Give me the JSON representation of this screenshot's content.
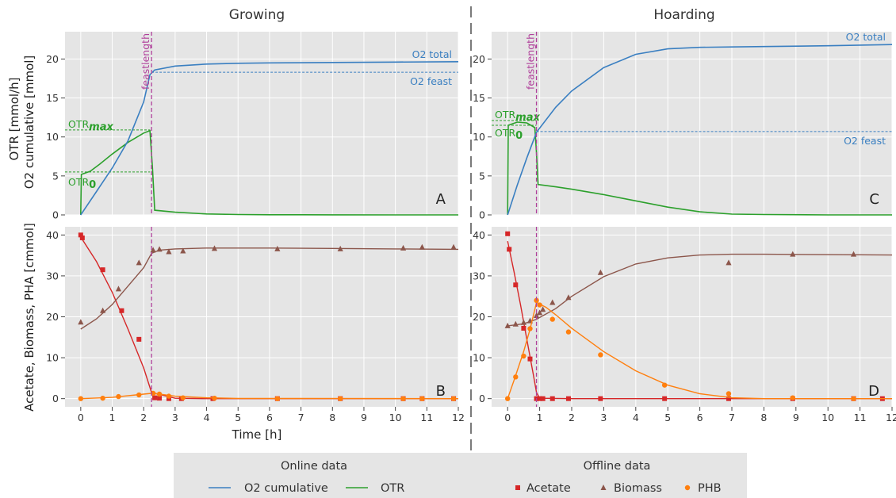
{
  "figure": {
    "ylabel_top_1": "OTR [mmol/h]",
    "ylabel_top_2": "O2 cumulative [mmol]",
    "ylabel_bottom": "Acetate, Biomass, PHA [cmmol]",
    "xlabel": "Time [h]"
  },
  "colors": {
    "o2": "#3a7fc1",
    "otr": "#2ca02c",
    "acetate": "#d62728",
    "biomass": "#8c564b",
    "phb": "#ff7f0e",
    "feast": "#b0409b"
  },
  "legend": {
    "online_title": "Online data",
    "offline_title": "Offline data",
    "o2_cumulative": "O2 cumulative",
    "otr": "OTR",
    "acetate": "Acetate",
    "biomass": "Biomass",
    "phb": "PHB"
  },
  "chart_data": [
    {
      "type": "line",
      "panel": "A",
      "column_title": "Growing",
      "xlim": [
        -0.5,
        12
      ],
      "ylim": [
        0,
        23.5
      ],
      "yticks": [
        0,
        5,
        10,
        15,
        20
      ],
      "xticks": [
        0,
        1,
        2,
        3,
        4,
        5,
        6,
        7,
        8,
        9,
        10,
        11,
        12
      ],
      "grid": true,
      "feastlength": 2.25,
      "feastlength_label": "feastlength",
      "series": [
        {
          "name": "O2 cumulative",
          "x": [
            0,
            0.5,
            1,
            1.5,
            2,
            2.2,
            2.35,
            3,
            4,
            5,
            6,
            8,
            10,
            12
          ],
          "y": [
            0,
            3,
            6,
            9.5,
            14.5,
            18,
            18.6,
            19.1,
            19.35,
            19.45,
            19.5,
            19.55,
            19.6,
            19.65
          ]
        },
        {
          "name": "OTR",
          "x": [
            0,
            0.02,
            0.3,
            0.6,
            1,
            1.5,
            2,
            2.2,
            2.28,
            2.35,
            3,
            4,
            5,
            6,
            8,
            10,
            12
          ],
          "y": [
            0,
            5.2,
            5.6,
            6.5,
            7.8,
            9.3,
            10.5,
            10.8,
            6,
            0.6,
            0.35,
            0.12,
            0.05,
            0.02,
            0.01,
            0,
            0
          ]
        }
      ],
      "hlines": [
        {
          "label": "OTRmax",
          "y": 10.9,
          "x_end": 2.2,
          "color": "otr"
        },
        {
          "label": "OTR0",
          "y": 5.5,
          "x_end": 2.2,
          "color": "otr"
        },
        {
          "label": "O2 feast",
          "y": 18.3,
          "x_start": 2.25,
          "color": "o2"
        }
      ],
      "annotations": {
        "total": "O2 total",
        "feast": "O2 feast",
        "max_main": "OTR",
        "max_sub": "max",
        "zero_main": "OTR",
        "zero_sub": "0"
      }
    },
    {
      "type": "line",
      "panel": "C",
      "column_title": "Hoarding",
      "xlim": [
        -0.5,
        12
      ],
      "ylim": [
        0,
        23.5
      ],
      "yticks": [
        0,
        5,
        10,
        15,
        20
      ],
      "xticks": [
        0,
        1,
        2,
        3,
        4,
        5,
        6,
        7,
        8,
        9,
        10,
        11,
        12
      ],
      "grid": true,
      "feastlength": 0.9,
      "feastlength_label": "feastlength",
      "series": [
        {
          "name": "O2 cumulative",
          "x": [
            0,
            0.3,
            0.6,
            0.9,
            1.5,
            2,
            3,
            4,
            5,
            6,
            7,
            8,
            10,
            12
          ],
          "y": [
            0,
            3.8,
            7.3,
            10.6,
            13.8,
            15.9,
            18.9,
            20.6,
            21.3,
            21.5,
            21.55,
            21.6,
            21.7,
            21.85
          ]
        },
        {
          "name": "OTR",
          "x": [
            0,
            0.02,
            0.3,
            0.6,
            0.85,
            0.9,
            0.95,
            1.5,
            2,
            3,
            4,
            5,
            6,
            7,
            8,
            10,
            12
          ],
          "y": [
            0,
            11.5,
            11.9,
            11.8,
            11.2,
            8,
            3.9,
            3.6,
            3.3,
            2.6,
            1.8,
            1,
            0.4,
            0.1,
            0.05,
            0,
            0
          ]
        }
      ],
      "hlines": [
        {
          "label": "OTRmax",
          "y": 12.1,
          "x_end": 0.9,
          "color": "otr"
        },
        {
          "label": "OTR0",
          "y": 11.5,
          "x_end": 0.9,
          "color": "otr"
        },
        {
          "label": "O2 feast",
          "y": 10.7,
          "x_start": 0.9,
          "color": "o2"
        }
      ],
      "annotations": {
        "total": "O2 total",
        "feast": "O2 feast",
        "max_main": "OTR",
        "max_sub": "max",
        "zero_main": "OTR",
        "zero_sub": "0"
      }
    },
    {
      "type": "scatter",
      "panel": "B",
      "xlim": [
        -0.5,
        12
      ],
      "ylim": [
        -2,
        42
      ],
      "yticks": [
        0,
        10,
        20,
        30,
        40
      ],
      "xticks": [
        0,
        1,
        2,
        3,
        4,
        5,
        6,
        7,
        8,
        9,
        10,
        11,
        12
      ],
      "grid": true,
      "feastlength": 2.25,
      "series": [
        {
          "name": "Acetate",
          "marker": "square",
          "points": [
            [
              0,
              40
            ],
            [
              0.05,
              39.3
            ],
            [
              0.7,
              31.5
            ],
            [
              1.3,
              21.5
            ],
            [
              1.85,
              14.5
            ],
            [
              2.35,
              0.2
            ],
            [
              2.5,
              0.1
            ],
            [
              2.8,
              0
            ],
            [
              3.2,
              0
            ],
            [
              4.2,
              0
            ],
            [
              6.25,
              0
            ],
            [
              8.25,
              0
            ],
            [
              10.25,
              0
            ],
            [
              10.85,
              0
            ],
            [
              11.85,
              0
            ]
          ],
          "fit": {
            "x": [
              0,
              0.5,
              1,
              1.5,
              2,
              2.25,
              3,
              4,
              6,
              8,
              10,
              12
            ],
            "y": [
              39.5,
              33.5,
              26,
              17,
              7.5,
              1.5,
              0.1,
              0,
              0,
              0,
              0,
              0
            ]
          }
        },
        {
          "name": "Biomass",
          "marker": "triangle",
          "points": [
            [
              0,
              18.7
            ],
            [
              0.7,
              21.5
            ],
            [
              1.2,
              26.8
            ],
            [
              1.85,
              33.2
            ],
            [
              2.3,
              36.3
            ],
            [
              2.5,
              36.5
            ],
            [
              2.8,
              35.9
            ],
            [
              3.25,
              36.1
            ],
            [
              4.25,
              36.7
            ],
            [
              6.25,
              36.6
            ],
            [
              8.25,
              36.6
            ],
            [
              10.25,
              36.8
            ],
            [
              10.85,
              37
            ],
            [
              11.85,
              37
            ]
          ],
          "fit": {
            "x": [
              0,
              0.5,
              1,
              1.5,
              2,
              2.25,
              2.5,
              3,
              4,
              6,
              8,
              10,
              12
            ],
            "y": [
              17,
              19.5,
              23,
              27.5,
              32,
              35.5,
              36.3,
              36.6,
              36.8,
              36.8,
              36.7,
              36.6,
              36.5
            ]
          }
        },
        {
          "name": "PHB",
          "marker": "circle",
          "points": [
            [
              0,
              0
            ],
            [
              0.7,
              0.1
            ],
            [
              1.2,
              0.5
            ],
            [
              1.85,
              0.9
            ],
            [
              2.3,
              1.3
            ],
            [
              2.5,
              1.1
            ],
            [
              2.8,
              0.6
            ],
            [
              3.25,
              0.2
            ],
            [
              4.25,
              0.1
            ],
            [
              6.25,
              0
            ],
            [
              8.25,
              0
            ],
            [
              10.25,
              0
            ],
            [
              10.85,
              0
            ],
            [
              11.85,
              0
            ]
          ],
          "fit": {
            "x": [
              0,
              1,
              2,
              2.25,
              2.5,
              3,
              4,
              5,
              12
            ],
            "y": [
              0,
              0.3,
              1.1,
              1.3,
              1.1,
              0.6,
              0.2,
              0.05,
              0
            ]
          }
        }
      ]
    },
    {
      "type": "scatter",
      "panel": "D",
      "xlim": [
        -0.5,
        12
      ],
      "ylim": [
        -2,
        42
      ],
      "yticks": [
        0,
        10,
        20,
        30,
        40
      ],
      "xticks": [
        0,
        1,
        2,
        3,
        4,
        5,
        6,
        7,
        8,
        9,
        10,
        11,
        12
      ],
      "grid": true,
      "feastlength": 0.9,
      "series": [
        {
          "name": "Acetate",
          "marker": "square",
          "points": [
            [
              0,
              40.3
            ],
            [
              0.05,
              36.5
            ],
            [
              0.25,
              27.8
            ],
            [
              0.5,
              17.2
            ],
            [
              0.7,
              9.7
            ],
            [
              0.9,
              0
            ],
            [
              1.0,
              0
            ],
            [
              1.1,
              0
            ],
            [
              1.4,
              0
            ],
            [
              1.9,
              0
            ],
            [
              2.9,
              0
            ],
            [
              4.9,
              0
            ],
            [
              6.9,
              0
            ],
            [
              8.9,
              0
            ],
            [
              10.8,
              0
            ],
            [
              11.7,
              0
            ]
          ],
          "fit": {
            "x": [
              0,
              0.2,
              0.4,
              0.6,
              0.8,
              0.9,
              1.0,
              2,
              4,
              6,
              8,
              10,
              12
            ],
            "y": [
              38.5,
              31,
              23,
              14.5,
              6,
              1.5,
              0.1,
              0,
              0,
              0,
              0,
              0,
              0
            ]
          }
        },
        {
          "name": "Biomass",
          "marker": "triangle",
          "points": [
            [
              0,
              17.8
            ],
            [
              0.25,
              18.2
            ],
            [
              0.5,
              18.6
            ],
            [
              0.7,
              19
            ],
            [
              0.9,
              20.3
            ],
            [
              1.0,
              21
            ],
            [
              1.1,
              21.8
            ],
            [
              1.4,
              23.5
            ],
            [
              1.9,
              24.7
            ],
            [
              2.9,
              30.8
            ],
            [
              6.9,
              33.2
            ],
            [
              8.9,
              35.3
            ],
            [
              10.8,
              35.3
            ]
          ],
          "fit": {
            "x": [
              0,
              0.5,
              0.9,
              1.5,
              2,
              3,
              4,
              5,
              6,
              7,
              8,
              10,
              12
            ],
            "y": [
              17.8,
              18.3,
              19.4,
              22,
              25,
              29.8,
              32.9,
              34.4,
              35.1,
              35.3,
              35.3,
              35.2,
              35.1
            ]
          }
        },
        {
          "name": "PHB",
          "marker": "circle",
          "points": [
            [
              0,
              0
            ],
            [
              0.25,
              5.3
            ],
            [
              0.5,
              10.4
            ],
            [
              0.7,
              17.1
            ],
            [
              0.9,
              24
            ],
            [
              1.0,
              22.9
            ],
            [
              1.4,
              19.4
            ],
            [
              1.9,
              16.3
            ],
            [
              2.9,
              10.7
            ],
            [
              4.9,
              3.3
            ],
            [
              6.9,
              1.2
            ],
            [
              8.9,
              0.2
            ],
            [
              10.8,
              0
            ]
          ],
          "fit": {
            "x": [
              0,
              0.2,
              0.5,
              0.7,
              0.9,
              1.2,
              1.5,
              2,
              3,
              4,
              5,
              6,
              7,
              8,
              12
            ],
            "y": [
              0,
              4.5,
              11.5,
              17,
              23.5,
              22.3,
              20.5,
              17.2,
              11.5,
              6.8,
              3.3,
              1.2,
              0.2,
              0,
              0
            ]
          }
        }
      ]
    }
  ]
}
